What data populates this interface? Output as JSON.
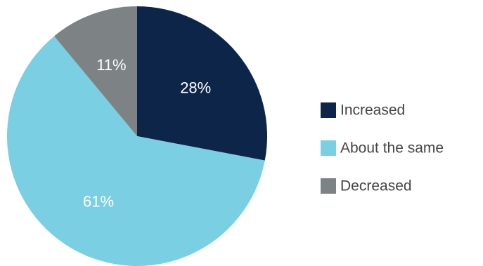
{
  "chart_data": {
    "type": "pie",
    "title": "",
    "slices": [
      {
        "label": "Increased",
        "value": 28,
        "display": "28%",
        "color": "#0c2549"
      },
      {
        "label": "About the same",
        "value": 61,
        "display": "61%",
        "color": "#7acfe2"
      },
      {
        "label": "Decreased",
        "value": 11,
        "display": "11%",
        "color": "#7d8284"
      }
    ],
    "legend_position": "right",
    "label_color": "#ffffff",
    "start_angle": "12 o'clock",
    "direction": "clockwise"
  }
}
